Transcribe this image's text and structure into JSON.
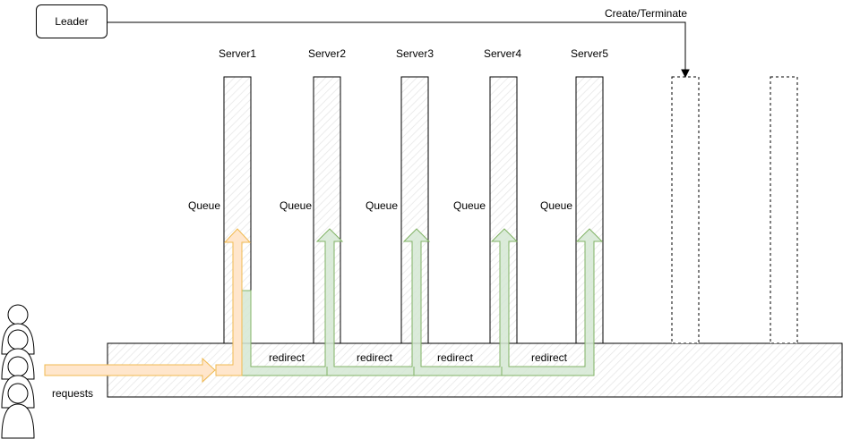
{
  "leader": {
    "label": "Leader"
  },
  "create_terminate": "Create/Terminate",
  "servers": [
    {
      "name": "Server1",
      "queue": "Queue"
    },
    {
      "name": "Server2",
      "queue": "Queue"
    },
    {
      "name": "Server3",
      "queue": "Queue"
    },
    {
      "name": "Server4",
      "queue": "Queue"
    },
    {
      "name": "Server5",
      "queue": "Queue"
    }
  ],
  "redirects": [
    "redirect",
    "redirect",
    "redirect",
    "redirect"
  ],
  "requests_label": "requests",
  "colors": {
    "orange_fill": "#ffe6cc",
    "orange_stroke": "#f0b94f",
    "green_fill": "#d5e8d4",
    "green_stroke": "#82b366",
    "hatch": "#e6e6e6"
  }
}
